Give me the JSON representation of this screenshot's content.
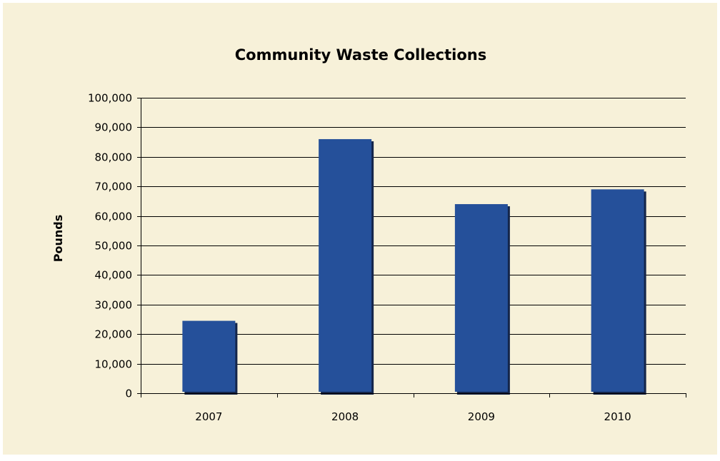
{
  "colors": {
    "chart_area": "#f7f1d9",
    "bar": "#25509a",
    "bar_shadow": "#14254a",
    "gridline": "#000000"
  },
  "chart_data": {
    "type": "bar",
    "title": "Community Waste Collections",
    "xlabel": "",
    "ylabel": "Pounds",
    "categories": [
      "2007",
      "2008",
      "2009",
      "2010"
    ],
    "values": [
      24500,
      86000,
      64000,
      69000
    ],
    "ylim": [
      0,
      100000
    ],
    "yticks": [
      0,
      10000,
      20000,
      30000,
      40000,
      50000,
      60000,
      70000,
      80000,
      90000,
      100000
    ],
    "ytick_labels": [
      "0",
      "10,000",
      "20,000",
      "30,000",
      "40,000",
      "50,000",
      "60,000",
      "70,000",
      "80,000",
      "90,000",
      "100,000"
    ],
    "grid": true,
    "legend": "none"
  }
}
